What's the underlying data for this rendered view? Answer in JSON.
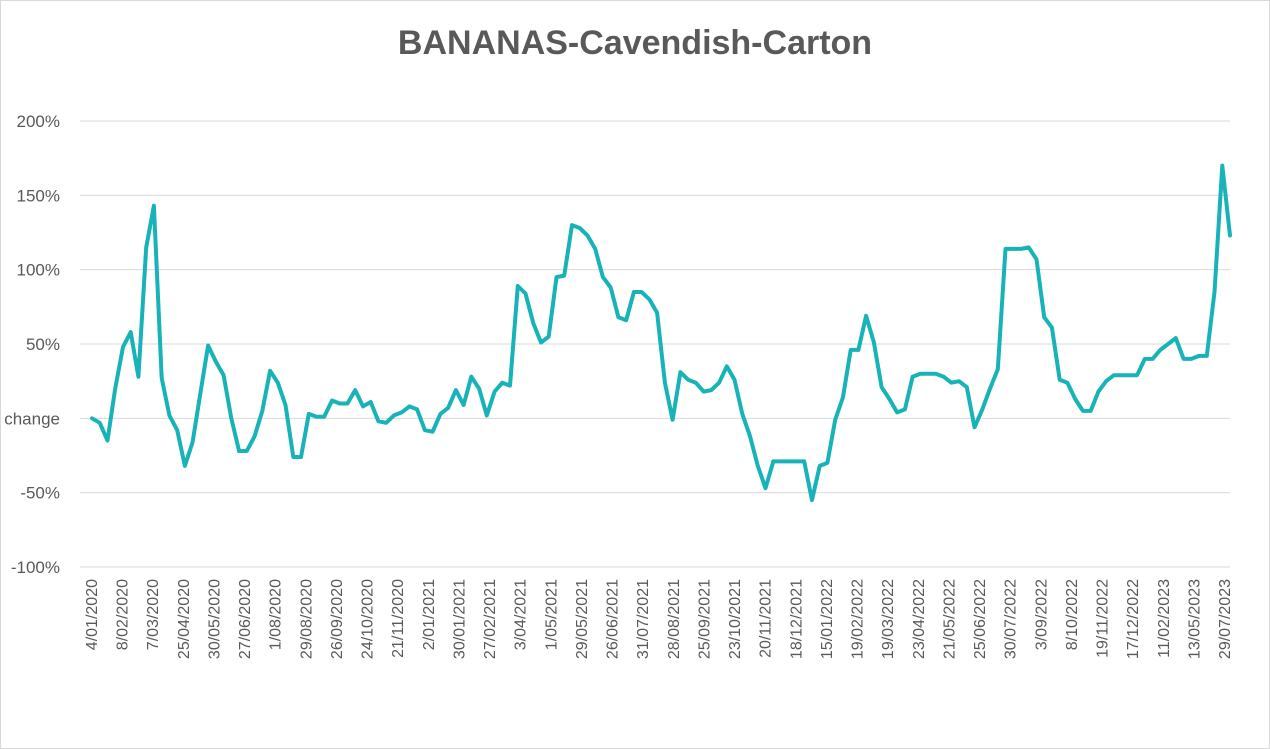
{
  "chart_data": {
    "type": "line",
    "title": "BANANAS-Cavendish-Carton",
    "ylabel": "change",
    "y_ticks": [
      "200%",
      "150%",
      "100%",
      "50%",
      "",
      "-50%",
      "-100%"
    ],
    "ylim": [
      -100,
      200
    ],
    "grid": true,
    "x_tick_labels": [
      "4/01/2020",
      "8/02/2020",
      "7/03/2020",
      "25/04/2020",
      "30/05/2020",
      "27/06/2020",
      "1/08/2020",
      "29/08/2020",
      "26/09/2020",
      "24/10/2020",
      "21/11/2020",
      "2/01/2021",
      "30/01/2021",
      "27/02/2021",
      "3/04/2021",
      "1/05/2021",
      "29/05/2021",
      "26/06/2021",
      "31/07/2021",
      "28/08/2021",
      "25/09/2021",
      "23/10/2021",
      "20/11/2021",
      "18/12/2021",
      "15/01/2022",
      "19/02/2022",
      "19/03/2022",
      "23/04/2022",
      "21/05/2022",
      "25/06/2022",
      "30/07/2022",
      "3/09/2022",
      "8/10/2022",
      "19/11/2022",
      "17/12/2022",
      "11/02/2023",
      "13/05/2023",
      "29/07/2023"
    ],
    "series": [
      {
        "color": "#17b3b8",
        "values": [
          0,
          -3,
          -15,
          20,
          48,
          58,
          28,
          115,
          143,
          27,
          2,
          -8,
          -32,
          -16,
          17,
          49,
          38,
          29,
          0,
          -22,
          -22,
          -12,
          5,
          32,
          24,
          9,
          -26,
          -26,
          3,
          1,
          1,
          12,
          10,
          10,
          19,
          8,
          11,
          -2,
          -3,
          2,
          4,
          8,
          6,
          -8,
          -9,
          3,
          7,
          19,
          9,
          28,
          20,
          2,
          18,
          24,
          22,
          89,
          84,
          64,
          51,
          55,
          95,
          96,
          130,
          128,
          123,
          114,
          95,
          88,
          68,
          66,
          85,
          85,
          80,
          71,
          24,
          -1,
          31,
          26,
          24,
          18,
          19,
          24,
          35,
          26,
          3,
          -12,
          -32,
          -47,
          -29,
          -29,
          -29,
          -29,
          -29,
          -55,
          -32,
          -30,
          -1,
          14,
          46,
          46,
          69,
          51,
          21,
          13,
          4,
          6,
          28,
          30,
          30,
          30,
          28,
          24,
          25,
          21,
          -6,
          6,
          20,
          33,
          114,
          114,
          114,
          115,
          107,
          68,
          61,
          26,
          24,
          13,
          5,
          5,
          18,
          25,
          29,
          29,
          29,
          29,
          40,
          40,
          46,
          50,
          54,
          40,
          40,
          42,
          42,
          85,
          170,
          123
        ]
      }
    ]
  }
}
